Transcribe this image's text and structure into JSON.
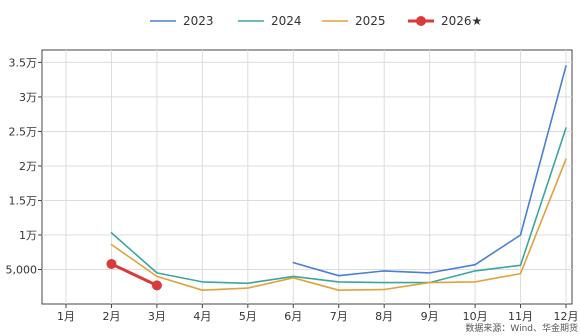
{
  "chart_data": {
    "type": "line",
    "title": "",
    "xlabel": "",
    "ylabel": "",
    "categories": [
      "1月",
      "2月",
      "3月",
      "4月",
      "5月",
      "6月",
      "7月",
      "8月",
      "9月",
      "10月",
      "11月",
      "12月"
    ],
    "y_ticks": [
      {
        "value": 5000,
        "label": "5,000"
      },
      {
        "value": 10000,
        "label": "1万"
      },
      {
        "value": 15000,
        "label": "1.5万"
      },
      {
        "value": 20000,
        "label": "2万"
      },
      {
        "value": 25000,
        "label": "2.5万"
      },
      {
        "value": 30000,
        "label": "3万"
      },
      {
        "value": 35000,
        "label": "3.5万"
      }
    ],
    "ylim": [
      0,
      36800
    ],
    "grid": true,
    "legend_position": "top-center",
    "series": [
      {
        "name": "2023",
        "color": "#4a7fd6",
        "marker": false,
        "values": [
          null,
          null,
          null,
          null,
          null,
          6000,
          4100,
          4800,
          4500,
          5700,
          10000,
          34500
        ]
      },
      {
        "name": "2024",
        "color": "#3aa6a0",
        "marker": false,
        "values": [
          null,
          10300,
          4500,
          3200,
          3000,
          4000,
          3200,
          3100,
          3100,
          4800,
          5600,
          25500
        ]
      },
      {
        "name": "2025",
        "color": "#e0a23a",
        "marker": false,
        "values": [
          null,
          8600,
          4000,
          2000,
          2300,
          3800,
          2000,
          2100,
          3100,
          3200,
          4400,
          21000
        ]
      },
      {
        "name": "2026★",
        "color": "#d93a3a",
        "marker": true,
        "values": [
          null,
          5800,
          2700,
          null,
          null,
          null,
          null,
          null,
          null,
          null,
          null,
          null
        ]
      }
    ]
  },
  "source": "数据来源：Wind、华金期货"
}
